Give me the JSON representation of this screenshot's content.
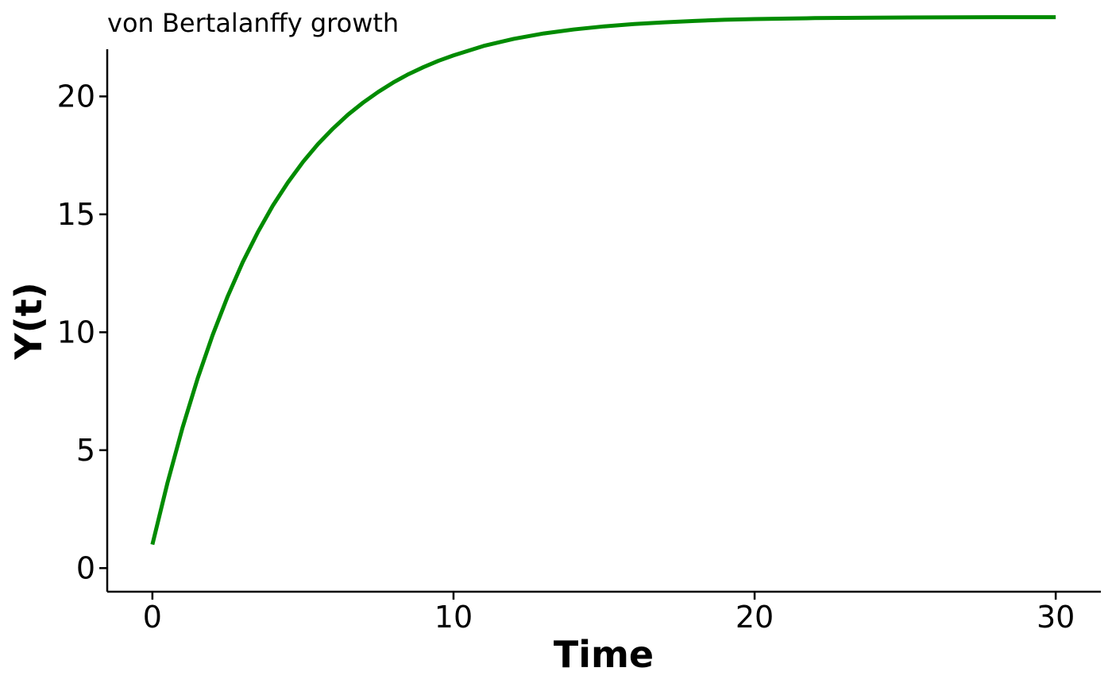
{
  "chart_data": {
    "type": "line",
    "title": "von Bertalanffy growth",
    "xlabel": "Time",
    "ylabel": "Y(t)",
    "xlim": [
      -1.5,
      31.5
    ],
    "ylim": [
      -1,
      22
    ],
    "x_ticks": [
      0,
      10,
      20,
      30
    ],
    "x_tick_labels": [
      "0",
      "10",
      "20",
      "30"
    ],
    "y_ticks": [
      0,
      5,
      10,
      15,
      20
    ],
    "y_tick_labels": [
      "0",
      "5",
      "10",
      "15",
      "20"
    ],
    "grid": false,
    "legend": "none",
    "series": [
      {
        "color": "#008B00",
        "x": [
          0,
          0.5,
          1,
          1.5,
          2,
          2.5,
          3,
          3.5,
          4,
          4.5,
          5,
          5.5,
          6,
          6.5,
          7,
          7.5,
          8,
          8.5,
          9,
          9.5,
          10,
          11,
          12,
          13,
          14,
          15,
          16,
          17,
          18,
          19,
          20,
          22,
          24,
          26,
          28,
          30
        ],
        "values": [
          1.0,
          3.61,
          5.95,
          8.03,
          9.88,
          11.52,
          12.97,
          14.24,
          15.37,
          16.35,
          17.22,
          17.98,
          18.64,
          19.23,
          19.74,
          20.19,
          20.59,
          20.94,
          21.24,
          21.51,
          21.74,
          22.14,
          22.44,
          22.67,
          22.84,
          22.97,
          23.07,
          23.14,
          23.2,
          23.25,
          23.28,
          23.32,
          23.34,
          23.35,
          23.36,
          23.36
        ]
      }
    ]
  }
}
